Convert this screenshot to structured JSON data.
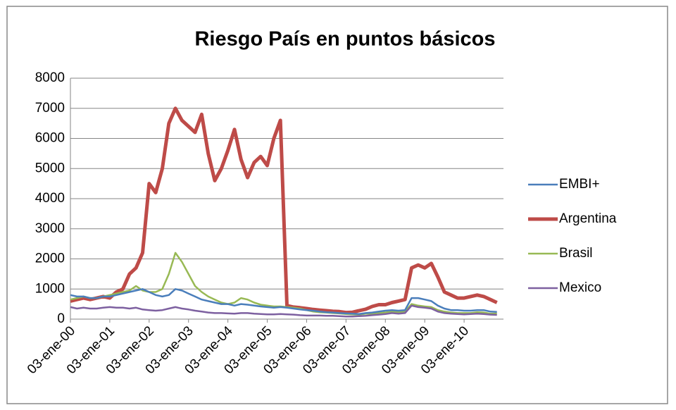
{
  "chart_data": {
    "type": "line",
    "title": "Riesgo País en puntos básicos",
    "categories": [
      "03-ene-00",
      null,
      null,
      null,
      null,
      null,
      "03-ene-01",
      null,
      null,
      null,
      null,
      null,
      "03-ene-02",
      null,
      null,
      null,
      null,
      null,
      "03-ene-03",
      null,
      null,
      null,
      null,
      null,
      "03-ene-04",
      null,
      null,
      null,
      null,
      null,
      "03-ene-05",
      null,
      null,
      null,
      null,
      null,
      "03-ene-06",
      null,
      null,
      null,
      null,
      null,
      "03-ene-07",
      null,
      null,
      null,
      null,
      null,
      "03-ene-08",
      null,
      null,
      null,
      null,
      null,
      "03-ene-09",
      null,
      null,
      null,
      null,
      null,
      "03-ene-10",
      null,
      null,
      null,
      null,
      null
    ],
    "series": [
      {
        "name": "EMBI+",
        "color": "#4a7ebb",
        "values": [
          800,
          750,
          750,
          700,
          700,
          750,
          750,
          800,
          850,
          900,
          950,
          1000,
          900,
          800,
          750,
          800,
          1000,
          950,
          850,
          750,
          650,
          600,
          550,
          500,
          500,
          450,
          500,
          480,
          450,
          420,
          400,
          380,
          400,
          380,
          350,
          320,
          300,
          280,
          250,
          230,
          220,
          200,
          190,
          180,
          170,
          200,
          220,
          250,
          280,
          300,
          280,
          300,
          700,
          700,
          650,
          600,
          450,
          350,
          300,
          300,
          280,
          280,
          300,
          300,
          250,
          240
        ]
      },
      {
        "name": "Argentina",
        "color": "#be4b48",
        "values": [
          600,
          650,
          700,
          650,
          700,
          750,
          700,
          900,
          1000,
          1500,
          1700,
          2200,
          4500,
          4200,
          5000,
          6500,
          7000,
          6600,
          6400,
          6200,
          6800,
          5500,
          4600,
          5000,
          5600,
          6300,
          5300,
          4700,
          5200,
          5400,
          5100,
          6000,
          6600,
          450,
          400,
          380,
          350,
          320,
          300,
          280,
          260,
          250,
          220,
          230,
          280,
          330,
          420,
          480,
          480,
          550,
          600,
          650,
          1700,
          1800,
          1700,
          1850,
          1400,
          900,
          800,
          700,
          700,
          750,
          800,
          750,
          650,
          550
        ]
      },
      {
        "name": "Brasil",
        "color": "#98b954",
        "values": [
          650,
          700,
          750,
          700,
          700,
          750,
          800,
          850,
          900,
          950,
          1100,
          950,
          900,
          900,
          1000,
          1500,
          2200,
          1900,
          1500,
          1100,
          900,
          750,
          650,
          550,
          500,
          550,
          700,
          650,
          550,
          480,
          450,
          420,
          420,
          400,
          380,
          350,
          300,
          250,
          230,
          220,
          200,
          190,
          170,
          160,
          150,
          180,
          180,
          200,
          220,
          250,
          230,
          250,
          500,
          450,
          420,
          400,
          300,
          250,
          220,
          200,
          200,
          200,
          230,
          220,
          180,
          180
        ]
      },
      {
        "name": "Mexico",
        "color": "#7d60a0",
        "values": [
          400,
          350,
          380,
          350,
          350,
          380,
          400,
          380,
          380,
          350,
          380,
          320,
          300,
          280,
          300,
          350,
          400,
          350,
          320,
          280,
          250,
          220,
          200,
          200,
          190,
          180,
          200,
          200,
          180,
          170,
          160,
          160,
          170,
          160,
          150,
          130,
          120,
          120,
          120,
          110,
          110,
          100,
          90,
          90,
          100,
          110,
          130,
          150,
          170,
          200,
          180,
          200,
          450,
          400,
          380,
          350,
          250,
          200,
          180,
          170,
          160,
          170,
          180,
          170,
          150,
          140
        ]
      }
    ],
    "ylim": [
      0,
      8000
    ],
    "yticks": [
      0,
      1000,
      2000,
      3000,
      4000,
      5000,
      6000,
      7000,
      8000
    ],
    "grid": true,
    "legend": "right"
  }
}
